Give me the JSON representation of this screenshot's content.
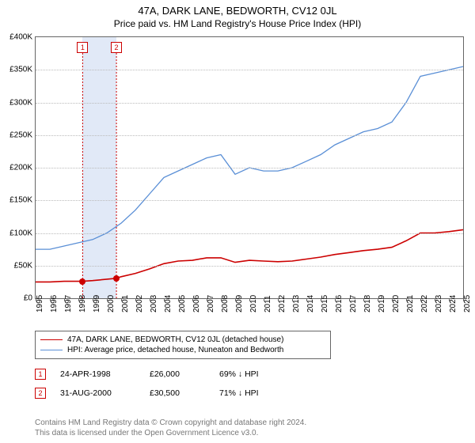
{
  "title": "47A, DARK LANE, BEDWORTH, CV12 0JL",
  "subtitle": "Price paid vs. HM Land Registry's House Price Index (HPI)",
  "chart": {
    "type": "line",
    "background_color": "#ffffff",
    "grid_color": "#bbbbbb",
    "ylim": [
      0,
      400
    ],
    "ytick_step": 50,
    "ylabel_prefix": "£",
    "ylabel_suffix": "K",
    "yticks": [
      0,
      50,
      100,
      150,
      200,
      250,
      300,
      350,
      400
    ],
    "xlim": [
      1995,
      2025
    ],
    "xticks": [
      1995,
      1996,
      1997,
      1998,
      1999,
      2000,
      2001,
      2002,
      2003,
      2004,
      2005,
      2006,
      2007,
      2008,
      2009,
      2010,
      2011,
      2012,
      2013,
      2014,
      2015,
      2016,
      2017,
      2018,
      2019,
      2020,
      2021,
      2022,
      2023,
      2024,
      2025
    ],
    "highlight_band": {
      "from": 1998.3,
      "to": 2000.67,
      "color": "#c8d7f0"
    },
    "series": [
      {
        "name": "47A, DARK LANE, BEDWORTH, CV12 0JL (detached house)",
        "color": "#cc0000",
        "line_width": 1.6,
        "points": [
          [
            1995,
            25
          ],
          [
            1996,
            25
          ],
          [
            1997,
            26
          ],
          [
            1998.3,
            26
          ],
          [
            1999,
            27
          ],
          [
            2000.67,
            30.5
          ],
          [
            2001,
            33
          ],
          [
            2002,
            38
          ],
          [
            2003,
            45
          ],
          [
            2004,
            53
          ],
          [
            2005,
            57
          ],
          [
            2006,
            58
          ],
          [
            2007,
            62
          ],
          [
            2008,
            62
          ],
          [
            2009,
            55
          ],
          [
            2010,
            58
          ],
          [
            2011,
            57
          ],
          [
            2012,
            56
          ],
          [
            2013,
            57
          ],
          [
            2014,
            60
          ],
          [
            2015,
            63
          ],
          [
            2016,
            67
          ],
          [
            2017,
            70
          ],
          [
            2018,
            73
          ],
          [
            2019,
            75
          ],
          [
            2020,
            78
          ],
          [
            2021,
            88
          ],
          [
            2022,
            100
          ],
          [
            2023,
            100
          ],
          [
            2024,
            102
          ],
          [
            2025,
            105
          ]
        ]
      },
      {
        "name": "HPI: Average price, detached house, Nuneaton and Bedworth",
        "color": "#5a8fd6",
        "line_width": 1.3,
        "points": [
          [
            1995,
            75
          ],
          [
            1996,
            75
          ],
          [
            1997,
            80
          ],
          [
            1998,
            85
          ],
          [
            1999,
            90
          ],
          [
            2000,
            100
          ],
          [
            2001,
            115
          ],
          [
            2002,
            135
          ],
          [
            2003,
            160
          ],
          [
            2004,
            185
          ],
          [
            2005,
            195
          ],
          [
            2006,
            205
          ],
          [
            2007,
            215
          ],
          [
            2008,
            220
          ],
          [
            2009,
            190
          ],
          [
            2010,
            200
          ],
          [
            2011,
            195
          ],
          [
            2012,
            195
          ],
          [
            2013,
            200
          ],
          [
            2014,
            210
          ],
          [
            2015,
            220
          ],
          [
            2016,
            235
          ],
          [
            2017,
            245
          ],
          [
            2018,
            255
          ],
          [
            2019,
            260
          ],
          [
            2020,
            270
          ],
          [
            2021,
            300
          ],
          [
            2022,
            340
          ],
          [
            2023,
            345
          ],
          [
            2024,
            350
          ],
          [
            2025,
            355
          ]
        ]
      }
    ],
    "sale_markers": [
      {
        "label": "1",
        "year": 1998.3,
        "price_k": 26,
        "color": "#cc0000"
      },
      {
        "label": "2",
        "year": 2000.67,
        "price_k": 30.5,
        "color": "#cc0000"
      }
    ]
  },
  "legend": {
    "series1": "47A, DARK LANE, BEDWORTH, CV12 0JL (detached house)",
    "series2": "HPI: Average price, detached house, Nuneaton and Bedworth"
  },
  "transactions": [
    {
      "label": "1",
      "date": "24-APR-1998",
      "price": "£26,000",
      "hpi_note": "69% ↓ HPI"
    },
    {
      "label": "2",
      "date": "31-AUG-2000",
      "price": "£30,500",
      "hpi_note": "71% ↓ HPI"
    }
  ],
  "footer_line1": "Contains HM Land Registry data © Crown copyright and database right 2024.",
  "footer_line2": "This data is licensed under the Open Government Licence v3.0."
}
